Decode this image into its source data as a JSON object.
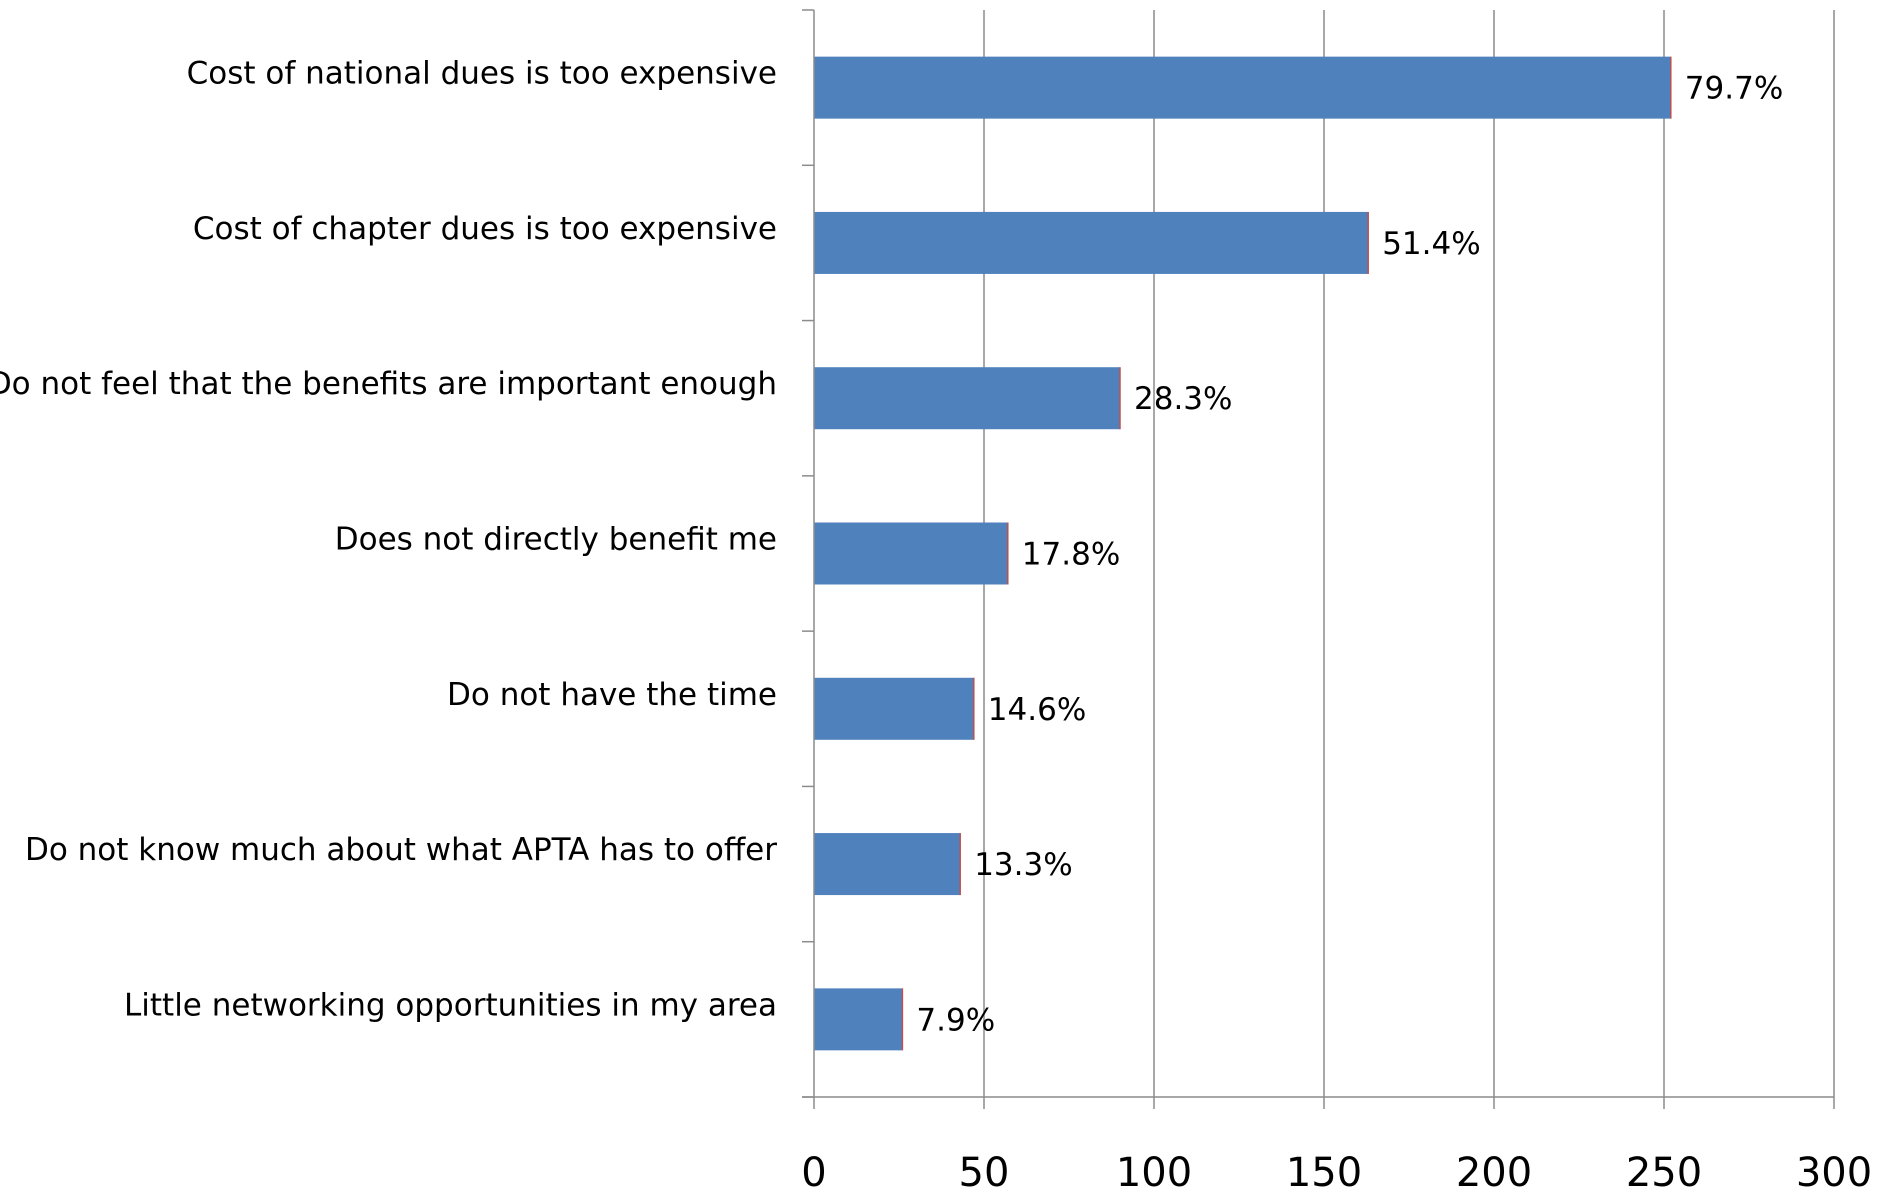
{
  "chart_data": {
    "type": "bar",
    "orientation": "horizontal",
    "title": "",
    "xlabel": "",
    "ylabel": "",
    "categories": [
      "Cost of national dues is too expensive",
      "Cost of chapter dues is too expensive",
      "Do not feel that the benefits are important enough",
      "Does not directly benefit me",
      "Do not have the time",
      "Do not know much about what APTA has to offer",
      "Little networking opportunities in my area"
    ],
    "values": [
      252,
      163,
      90,
      57,
      47,
      43,
      26
    ],
    "data_labels": [
      "79.7%",
      "51.4%",
      "28.3%",
      "17.8%",
      "14.6%",
      "13.3%",
      "7.9%"
    ],
    "xlim": [
      0,
      300
    ],
    "x_ticks": [
      0,
      50,
      100,
      150,
      200,
      250,
      300
    ],
    "x_tick_labels": [
      "0",
      "50",
      "100",
      "150",
      "200",
      "250",
      "300"
    ],
    "grid": true,
    "legend": "none",
    "colors": {
      "bar_fill": "#4f81bd",
      "bar_edge": "#c0504d",
      "gridline": "#8c8c8c",
      "axis": "#8c8c8c"
    }
  }
}
